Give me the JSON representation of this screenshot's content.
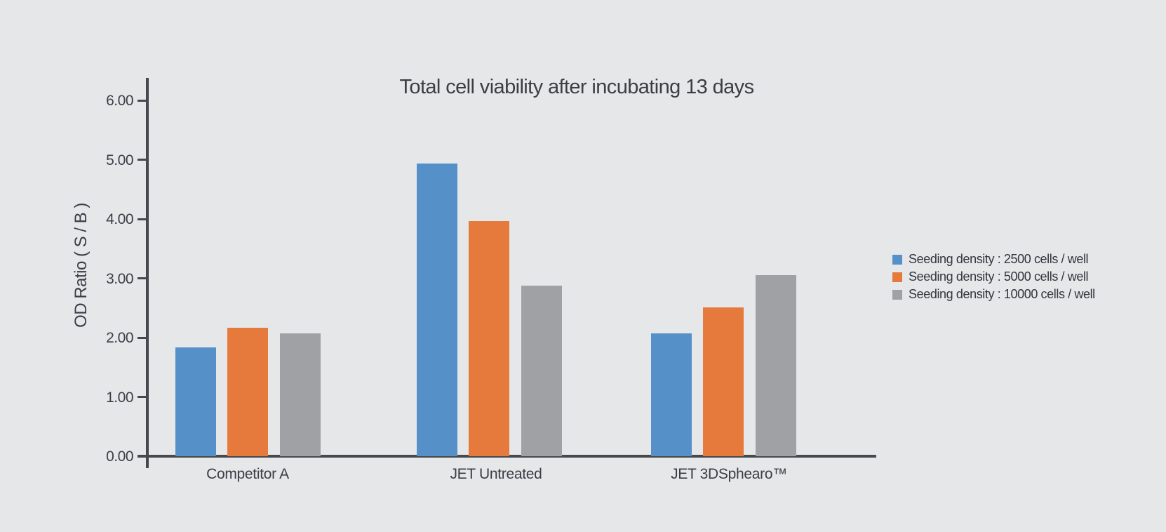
{
  "page": {
    "background_color": "#e6e7e9",
    "axis_color": "#45484c",
    "text_color": "#3a3e45"
  },
  "chart_data": {
    "type": "bar",
    "title": "Total cell viability after incubating 13 days",
    "xlabel": "",
    "ylabel": "OD Ratio ( S / B )",
    "categories": [
      "Competitor A",
      "JET Untreated",
      "JET 3DSphearo™"
    ],
    "series": [
      {
        "name": "Seeding density : 2500 cells / well",
        "color": "#5591c8",
        "values": [
          1.83,
          4.93,
          2.07
        ]
      },
      {
        "name": "Seeding density : 5000 cells / well",
        "color": "#e67a3c",
        "values": [
          2.17,
          3.97,
          2.51
        ]
      },
      {
        "name": "Seeding density : 10000 cells / well",
        "color": "#9fa1a5",
        "values": [
          2.07,
          2.88,
          3.05
        ]
      }
    ],
    "ylim": [
      0,
      6
    ],
    "ytick_labels": [
      "0.00",
      "1.00",
      "2.00",
      "3.00",
      "4.00",
      "5.00",
      "6.00"
    ],
    "grid": false,
    "legend_position": "right"
  }
}
